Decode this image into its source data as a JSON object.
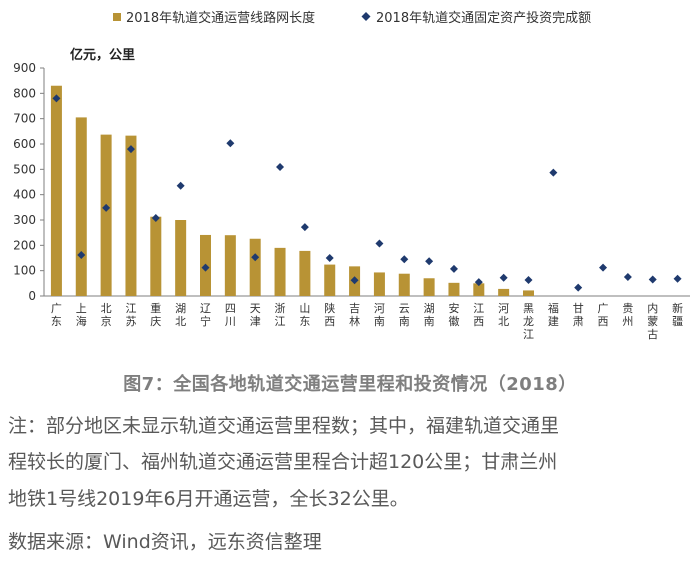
{
  "chart_data": {
    "type": "bar",
    "title": "图7：全国各地轨道交通运营里程和投资情况（2018）",
    "unit_label": "亿元，公里",
    "ylim": [
      0,
      900
    ],
    "yticks": [
      0,
      100,
      200,
      300,
      400,
      500,
      600,
      700,
      800,
      900
    ],
    "categories": [
      "广东",
      "上海",
      "北京",
      "江苏",
      "重庆",
      "湖北",
      "辽宁",
      "四川",
      "天津",
      "浙江",
      "山东",
      "陕西",
      "吉林",
      "河南",
      "云南",
      "湖南",
      "安徽",
      "江西",
      "河北",
      "黑龙江",
      "福建",
      "甘肃",
      "广西",
      "贵州",
      "内蒙古",
      "新疆"
    ],
    "series": [
      {
        "name": "2018年轨道交通运营线路网长度",
        "kind": "bar",
        "color": "#b89335",
        "values": [
          830,
          705,
          637,
          633,
          313,
          300,
          241,
          240,
          226,
          190,
          178,
          124,
          117,
          93,
          88,
          70,
          52,
          50,
          28,
          22,
          null,
          null,
          null,
          null,
          null,
          null
        ]
      },
      {
        "name": "2018年轨道交通固定资产投资完成额",
        "kind": "scatter",
        "color": "#1f3a6e",
        "values": [
          780,
          162,
          348,
          580,
          308,
          435,
          112,
          603,
          153,
          509,
          272,
          150,
          62,
          207,
          145,
          137,
          107,
          55,
          72,
          63,
          487,
          33,
          112,
          75,
          65,
          68
        ]
      }
    ]
  },
  "notes": [
    "注：部分地区未显示轨道交通运营里程数；其中，福建轨道交通里",
    "程较长的厦门、福州轨道交通运营里程合计超120公里；甘肃兰州",
    "地铁1号线2019年6月开通运营，全长32公里。",
    "数据来源：Wind资讯，远东资信整理"
  ]
}
